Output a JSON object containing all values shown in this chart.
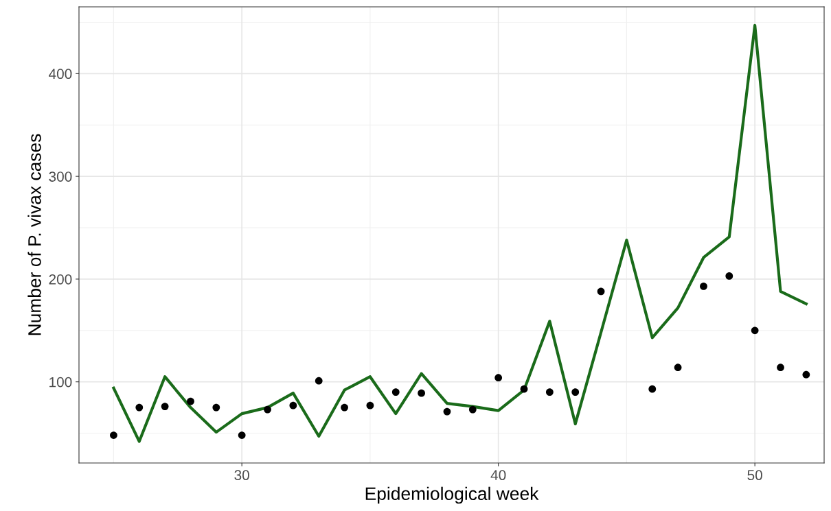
{
  "chart_data": {
    "type": "line",
    "xlabel": "Epidemiological week",
    "ylabel": "Number of P. vivax cases",
    "x": [
      25,
      26,
      27,
      28,
      29,
      30,
      31,
      32,
      33,
      34,
      35,
      36,
      37,
      38,
      39,
      40,
      41,
      42,
      43,
      44,
      45,
      46,
      47,
      48,
      49,
      50,
      51,
      52
    ],
    "series": [
      {
        "color": "#1a6b1a",
        "values": [
          94,
          42,
          105,
          75,
          51,
          69,
          75,
          89,
          47,
          92,
          105,
          69,
          108,
          79,
          76,
          72,
          92,
          159,
          59,
          148,
          238,
          143,
          172,
          221,
          241,
          447,
          188,
          176
        ]
      },
      {
        "type": "scatter",
        "color": "#000000",
        "values": [
          48,
          75,
          76,
          81,
          75,
          48,
          73,
          77,
          101,
          75,
          77,
          90,
          89,
          71,
          73,
          104,
          93,
          90,
          90,
          188,
          null,
          93,
          114,
          193,
          203,
          150,
          114,
          107
        ]
      }
    ],
    "xlim": [
      23.65,
      52.7
    ],
    "xticks": [
      30,
      40,
      50
    ],
    "ylim": [
      21,
      465
    ],
    "yticks": [
      100,
      200,
      300,
      400
    ],
    "grid": true
  }
}
